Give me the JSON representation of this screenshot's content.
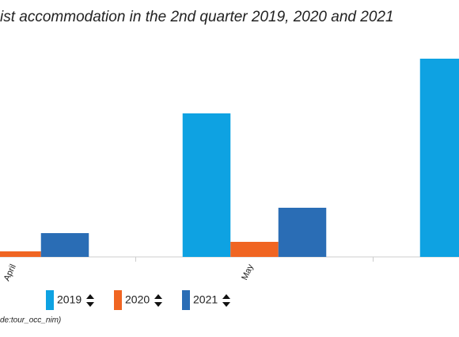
{
  "chart_data": {
    "type": "bar",
    "title": "ist accommodation in the 2nd quarter 2019, 2020 and 2021",
    "source": "de:tour_occ_nim)",
    "categories": [
      "April",
      "May",
      null
    ],
    "series": [
      {
        "name": "2019",
        "color": "#0ea2e2",
        "values": [
          null,
          181,
          250
        ]
      },
      {
        "name": "2020",
        "color": "#f06522",
        "values": [
          7,
          19,
          null
        ]
      },
      {
        "name": "2021",
        "color": "#2a6db5",
        "values": [
          30,
          62,
          null
        ]
      }
    ],
    "ylim": [
      0,
      260
    ]
  }
}
